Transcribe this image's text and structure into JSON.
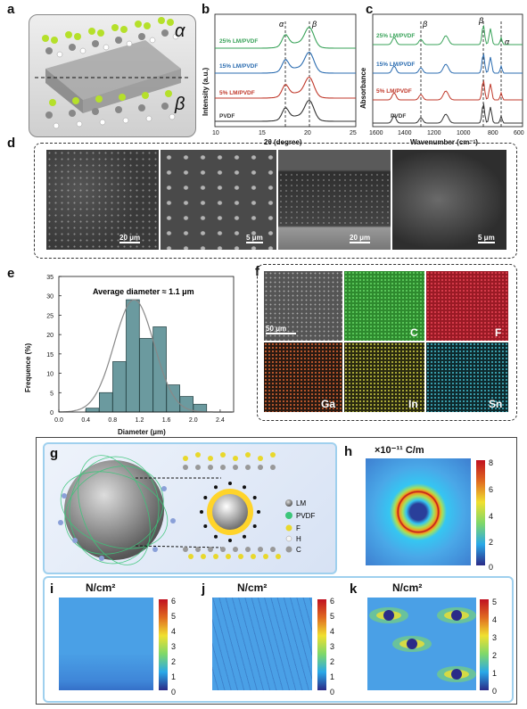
{
  "panels": {
    "a": "a",
    "b": "b",
    "c": "c",
    "d": "d",
    "e": "e",
    "f": "f",
    "g": "g",
    "h": "h",
    "i": "i",
    "j": "j",
    "k": "k"
  },
  "panel_a": {
    "alpha": "α",
    "beta": "β"
  },
  "panel_b": {
    "ylabel": "Intensity (a.u.)",
    "xlabel": "2θ (degree)",
    "xticks": [
      "10",
      "15",
      "20",
      "25"
    ],
    "series": [
      "25% LM/PVDF",
      "15% LM/PVDF",
      "5% LM/PVDF",
      "PVDF"
    ],
    "peaks": [
      "α",
      "β"
    ],
    "colors": [
      "#3aa35a",
      "#2b6cb0",
      "#c0392b",
      "#333333"
    ]
  },
  "panel_c": {
    "ylabel": "Absorbance",
    "xlabel": "Wavenumber (cm⁻¹)",
    "xticks": [
      "1600",
      "1400",
      "1200",
      "1000",
      "800",
      "600"
    ],
    "series": [
      "25% LM/PVDF",
      "15% LM/PVDF",
      "5% LM/PVDF",
      "PVDF"
    ],
    "peaks": [
      "β",
      "β",
      "α"
    ]
  },
  "panel_d": {
    "scales": [
      "20 μm",
      "5 μm",
      "20 μm",
      "5 μm"
    ]
  },
  "panel_e": {
    "annotation": "Average diameter ≈ 1.1 μm",
    "chart_data": {
      "type": "bar",
      "xlabel": "Diameter (μm)",
      "ylabel": "Frequence (%)",
      "x": [
        0.5,
        0.7,
        0.9,
        1.1,
        1.3,
        1.5,
        1.7,
        1.9,
        2.1
      ],
      "values": [
        1,
        5,
        13,
        29,
        19,
        22,
        7,
        4,
        2
      ],
      "xlim": [
        0.0,
        2.6
      ],
      "ylim": [
        0,
        35
      ],
      "xticks": [
        "0.0",
        "0.4",
        "0.8",
        "1.2",
        "1.6",
        "2.0",
        "2.4"
      ],
      "yticks": [
        "0",
        "5",
        "10",
        "15",
        "20",
        "25",
        "30",
        "35"
      ]
    }
  },
  "panel_f": {
    "scale": "50 μm",
    "elements": [
      "C",
      "F",
      "Ga",
      "In",
      "Sn"
    ]
  },
  "panel_g": {
    "legend": [
      "LM",
      "PVDF",
      "F",
      "H",
      "C"
    ]
  },
  "panel_h": {
    "unit": "×10⁻¹¹ C/m",
    "cbar": [
      "8",
      "6",
      "4",
      "2",
      "0"
    ]
  },
  "panel_i": {
    "unit": "N/cm²",
    "cbar": [
      "6",
      "5",
      "4",
      "3",
      "2",
      "1",
      "0"
    ]
  },
  "panel_j": {
    "unit": "N/cm²",
    "cbar": [
      "6",
      "5",
      "4",
      "3",
      "2",
      "1",
      "0"
    ]
  },
  "panel_k": {
    "unit": "N/cm²",
    "cbar": [
      "5",
      "4",
      "3",
      "2",
      "1",
      "0"
    ]
  }
}
